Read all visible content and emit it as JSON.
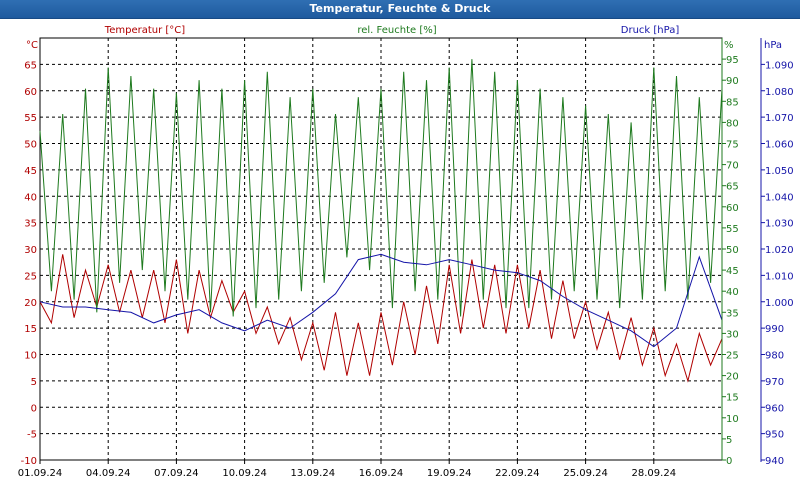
{
  "window": {
    "title": "Temperatur, Feuchte & Druck"
  },
  "chart_data": {
    "type": "line",
    "title": "Temperatur, Feuchte & Druck",
    "x_categories": [
      "01.09.24",
      "04.09.24",
      "07.09.24",
      "10.09.24",
      "13.09.24",
      "16.09.24",
      "19.09.24",
      "22.09.24",
      "25.09.24",
      "28.09.24"
    ],
    "x_range": [
      0,
      30
    ],
    "grid": true,
    "colors": {
      "temperature": "#b00000",
      "humidity": "#1e7a1e",
      "pressure": "#1414a8",
      "grid": "#000000"
    },
    "axes": {
      "temperature": {
        "unit": "°C",
        "range": [
          -10,
          70
        ],
        "ticks": [
          -10,
          -5,
          0,
          5,
          10,
          15,
          20,
          25,
          30,
          35,
          40,
          45,
          50,
          55,
          60,
          65
        ],
        "side": "left"
      },
      "humidity": {
        "unit": "%",
        "range": [
          0,
          100
        ],
        "ticks": [
          0,
          5,
          10,
          15,
          20,
          25,
          30,
          35,
          40,
          45,
          50,
          55,
          60,
          65,
          70,
          75,
          80,
          85,
          90,
          95
        ],
        "side": "right-inner"
      },
      "pressure": {
        "unit": "hPa",
        "range": [
          940,
          1100
        ],
        "ticks": [
          "940",
          "950",
          "960",
          "970",
          "980",
          "990",
          "1.000",
          "1.010",
          "1.020",
          "1.030",
          "1.040",
          "1.050",
          "1.060",
          "1.070",
          "1.080",
          "1.090"
        ],
        "tick_values": [
          940,
          950,
          960,
          970,
          980,
          990,
          1000,
          1010,
          1020,
          1030,
          1040,
          1050,
          1060,
          1070,
          1080,
          1090
        ],
        "side": "right-outer"
      }
    },
    "series": [
      {
        "name": "Temperatur [°C]",
        "axis": "temperature",
        "x": [
          0,
          0.5,
          1,
          1.5,
          2,
          2.5,
          3,
          3.5,
          4,
          4.5,
          5,
          5.5,
          6,
          6.5,
          7,
          7.5,
          8,
          8.5,
          9,
          9.5,
          10,
          10.5,
          11,
          11.5,
          12,
          12.5,
          13,
          13.5,
          14,
          14.5,
          15,
          15.5,
          16,
          16.5,
          17,
          17.5,
          18,
          18.5,
          19,
          19.5,
          20,
          20.5,
          21,
          21.5,
          22,
          22.5,
          23,
          23.5,
          24,
          24.5,
          25,
          25.5,
          26,
          26.5,
          27,
          27.5,
          28,
          28.5,
          29,
          29.5,
          30
        ],
        "values": [
          20,
          16,
          29,
          17,
          26,
          19,
          27,
          18,
          26,
          17,
          26,
          16,
          28,
          14,
          26,
          17,
          24,
          18,
          22,
          14,
          19,
          12,
          17,
          9,
          16,
          7,
          18,
          6,
          16,
          6,
          18,
          8,
          20,
          10,
          23,
          12,
          27,
          14,
          28,
          15,
          27,
          14,
          27,
          15,
          26,
          13,
          24,
          13,
          20,
          11,
          18,
          9,
          17,
          8,
          15,
          6,
          12,
          5,
          14,
          8,
          13
        ]
      },
      {
        "name": "rel. Feuchte [%]",
        "axis": "humidity",
        "x": [
          0,
          0.5,
          1,
          1.5,
          2,
          2.5,
          3,
          3.5,
          4,
          4.5,
          5,
          5.5,
          6,
          6.5,
          7,
          7.5,
          8,
          8.5,
          9,
          9.5,
          10,
          10.5,
          11,
          11.5,
          12,
          12.5,
          13,
          13.5,
          14,
          14.5,
          15,
          15.5,
          16,
          16.5,
          17,
          17.5,
          18,
          18.5,
          19,
          19.5,
          20,
          20.5,
          21,
          21.5,
          22,
          22.5,
          23,
          23.5,
          24,
          24.5,
          25,
          25.5,
          26,
          26.5,
          27,
          27.5,
          28,
          28.5,
          29,
          29.5,
          30
        ],
        "values": [
          78,
          40,
          82,
          38,
          88,
          35,
          93,
          42,
          91,
          45,
          88,
          40,
          87,
          38,
          90,
          35,
          88,
          34,
          90,
          36,
          92,
          38,
          86,
          40,
          88,
          42,
          82,
          48,
          86,
          45,
          88,
          36,
          92,
          40,
          90,
          38,
          93,
          34,
          95,
          38,
          92,
          36,
          90,
          36,
          88,
          38,
          86,
          40,
          84,
          38,
          82,
          36,
          80,
          38,
          93,
          40,
          91,
          38,
          86,
          42,
          88
        ]
      },
      {
        "name": "Druck [hPa]",
        "axis": "pressure",
        "x": [
          0,
          1,
          2,
          3,
          4,
          5,
          6,
          7,
          8,
          9,
          10,
          11,
          12,
          13,
          14,
          15,
          16,
          17,
          18,
          19,
          20,
          21,
          22,
          23,
          24,
          25,
          26,
          27,
          28,
          29,
          30
        ],
        "values": [
          1000,
          998,
          998,
          997,
          996,
          992,
          995,
          997,
          992,
          989,
          993,
          990,
          996,
          1003,
          1016,
          1018,
          1015,
          1014,
          1016,
          1014,
          1012,
          1011,
          1008,
          1002,
          997,
          993,
          989,
          983,
          990,
          1017,
          993
        ]
      }
    ]
  }
}
